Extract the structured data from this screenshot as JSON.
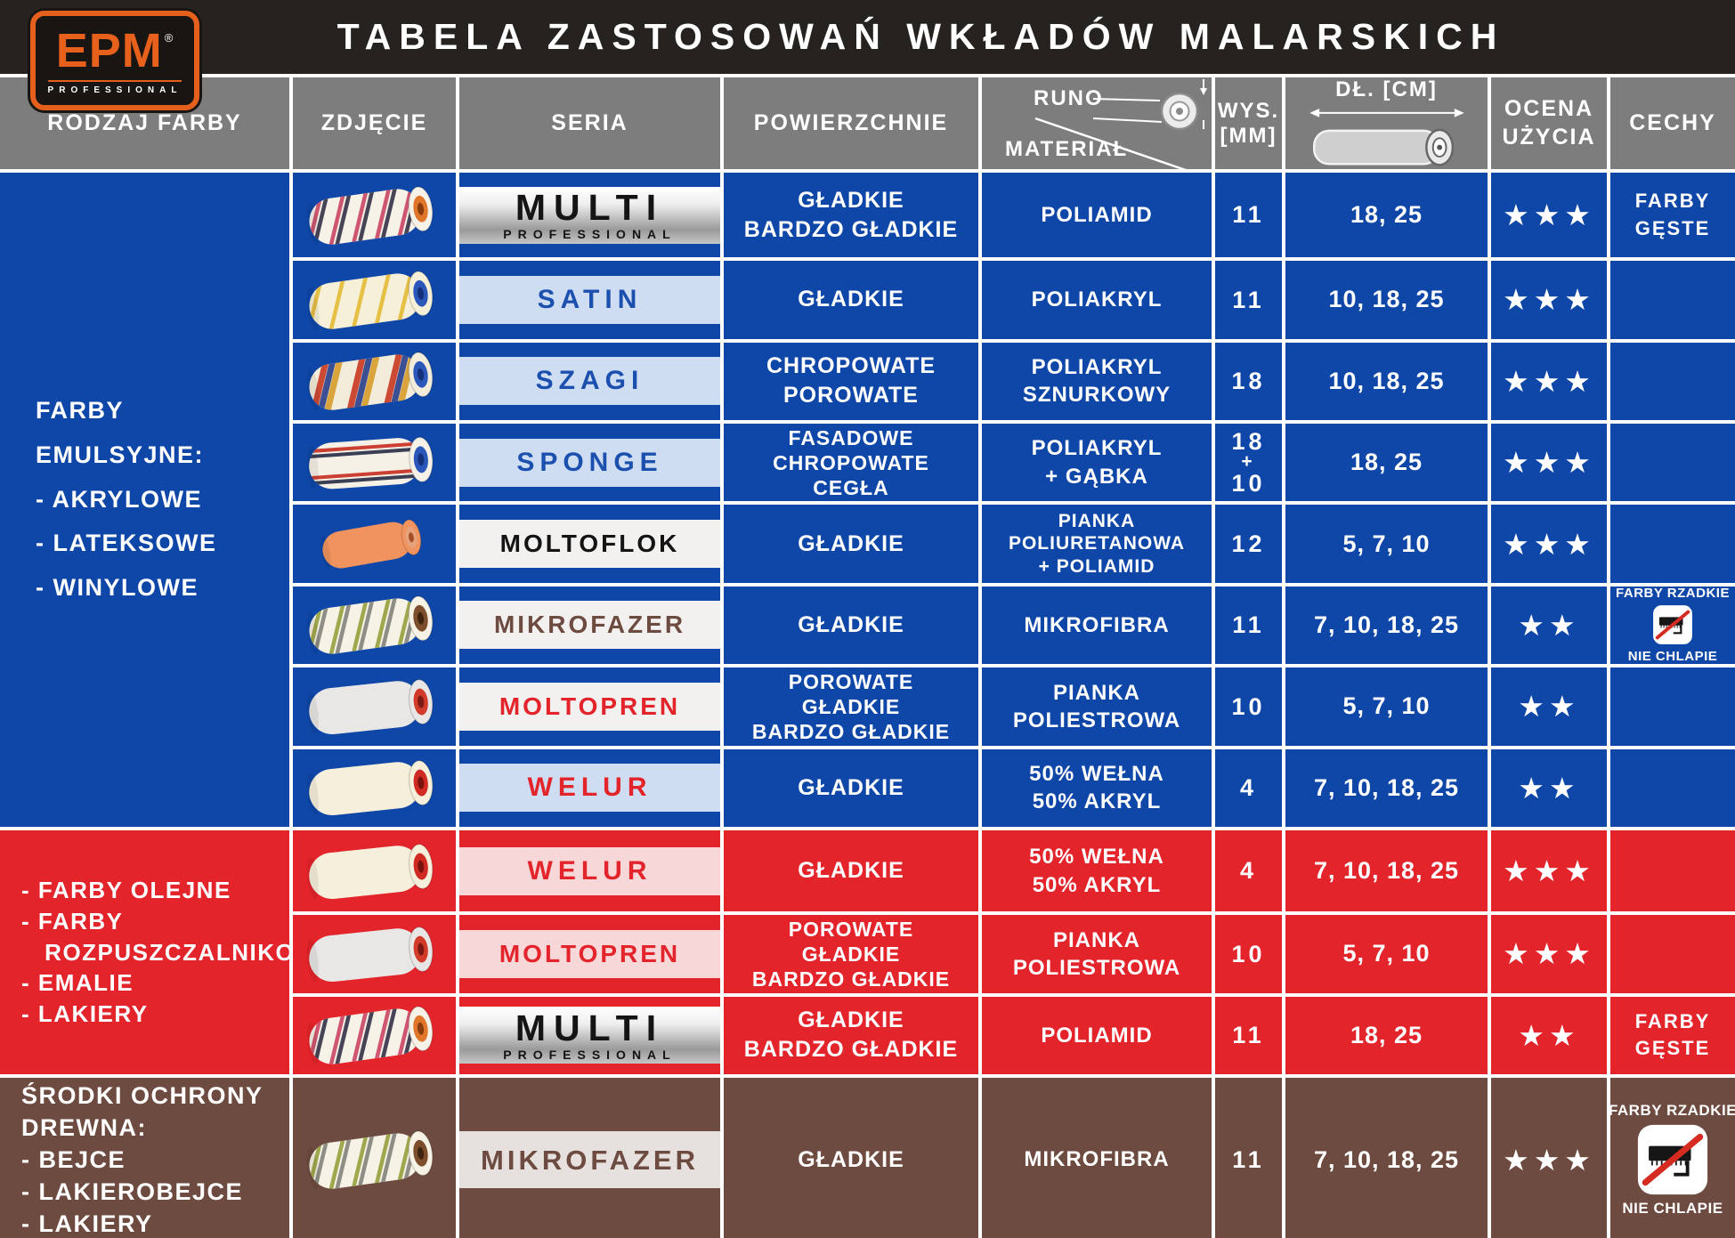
{
  "title": "TABELA ZASTOSOWAŃ WKŁADÓW MALARSKICH",
  "logo": {
    "brand": "EPM",
    "registered": "®",
    "subtitle": "PROFESSIONAL"
  },
  "header": {
    "paint_type": "RODZAJ FARBY",
    "photo": "ZDJĘCIE",
    "series": "SERIA",
    "surfaces": "POWIERZCHNIE",
    "pile": "RUNO",
    "material": "MATERIAŁ",
    "pile_height_l1": "WYS.",
    "pile_height_l2": "[MM]",
    "length": "DŁ. [CM]",
    "rating_l1": "OCENA",
    "rating_l2": "UŻYCIA",
    "features": "CECHY"
  },
  "star_char": "★",
  "colors": {
    "title_bg": "#262220",
    "header_bg": "#7d7d7d",
    "section_blue": "#0f47a8",
    "section_red": "#e3242b",
    "section_brown": "#6e4b40",
    "band_lightblue": "#cfddf2",
    "band_white": "#f3f1f0",
    "band_pink": "#f8d7d9",
    "band_lightgrey": "#e6e1de",
    "silver_top": "#ffffff",
    "silver_bottom": "#9a9a9a",
    "text_blue": "#1b50ae",
    "text_red": "#e3242b",
    "text_black": "#141414",
    "text_brown": "#6e4b40",
    "logo_orange": "#e55f1d",
    "slash_red": "#d52b20"
  },
  "rollers": {
    "multi": {
      "body": "#f7f2e8",
      "stripes": [
        "#cf5670",
        "#474457"
      ],
      "pattern": "diag",
      "core": "#e0762a",
      "hole": "#8a3c10",
      "rot": -8
    },
    "satin": {
      "body": "#f7f0d8",
      "stripes": [
        "#e6bf45"
      ],
      "pattern": "diag",
      "core": "#2b57bb",
      "hole": "#15307a",
      "rot": -8
    },
    "szagi": {
      "body": "#f4ecda",
      "stripes": [
        "#cc4a33",
        "#3c4f92",
        "#d9a43c"
      ],
      "pattern": "diag-thick",
      "core": "#2b57bb",
      "hole": "#15307a",
      "rot": -8
    },
    "sponge": {
      "body": "#f6f1e6",
      "stripes": [
        "#cc3f33",
        "#3a3f55"
      ],
      "pattern": "long",
      "core": "#2b57bb",
      "hole": "#15307a",
      "rot": -4
    },
    "moltoflok": {
      "body": "#f0935f",
      "stripes": [],
      "pattern": "plain",
      "core": "#e8a27b",
      "hole": "#a34e28",
      "rot": -10,
      "small": true
    },
    "mikrofazer": {
      "body": "#f6f2e6",
      "stripes": [
        "#a0a84e",
        "#8f8e86"
      ],
      "pattern": "diag",
      "core": "#7d4e2c",
      "hole": "#3f2410",
      "rot": -8
    },
    "moltopren": {
      "body": "#e8e7e5",
      "stripes": [],
      "pattern": "plain",
      "core": "#d23a2a",
      "hole": "#7a1a12",
      "rot": -6
    },
    "welur": {
      "body": "#f6efdb",
      "stripes": [],
      "pattern": "plain",
      "core": "#d02a22",
      "hole": "#7a130e",
      "rot": -6
    }
  },
  "sections": [
    {
      "name": "farby-emulsyjne",
      "theme": "blue",
      "label_lines": [
        "FARBY",
        "EMULSYJNE:",
        "- AKRYLOWE",
        "- LATEKSOWE",
        "- WINYLOWE"
      ],
      "rows": [
        {
          "seria": "MULTI",
          "seria_sub": "PROFESSIONAL",
          "band": "silver",
          "text": "black",
          "roller": "multi",
          "surfaces": [
            "GŁADKIE",
            "BARDZO GŁADKIE"
          ],
          "material": [
            "POLIAMID"
          ],
          "wys": [
            "11"
          ],
          "dl": "18, 25",
          "stars": 3,
          "cechy": {
            "lines": [
              "FARBY",
              "GĘSTE"
            ]
          }
        },
        {
          "seria": "SATIN",
          "band": "lightblue",
          "text": "blue",
          "roller": "satin",
          "surfaces": [
            "GŁADKIE"
          ],
          "material": [
            "POLIAKRYL"
          ],
          "wys": [
            "11"
          ],
          "dl": "10, 18, 25",
          "stars": 3,
          "cechy": null
        },
        {
          "seria": "SZAGI",
          "band": "lightblue",
          "text": "blue",
          "roller": "szagi",
          "surfaces": [
            "CHROPOWATE",
            "POROWATE"
          ],
          "material": [
            "POLIAKRYL",
            "SZNURKOWY"
          ],
          "wys": [
            "18"
          ],
          "dl": "10, 18, 25",
          "stars": 3,
          "cechy": null
        },
        {
          "seria": "SPONGE",
          "band": "lightblue",
          "text": "blue",
          "roller": "sponge",
          "surfaces": [
            "FASADOWE",
            "CHROPOWATE",
            "CEGŁA"
          ],
          "material": [
            "POLIAKRYL",
            "+ GĄBKA"
          ],
          "wys": [
            "18",
            "+",
            "10"
          ],
          "dl": "18, 25",
          "stars": 3,
          "cechy": null
        },
        {
          "seria": "MOLTOFLOK",
          "band": "white",
          "text": "black",
          "roller": "moltoflok",
          "surfaces": [
            "GŁADKIE"
          ],
          "material": [
            "PIANKA",
            "POLIURETANOWA",
            "+ POLIAMID"
          ],
          "wys": [
            "12"
          ],
          "dl": "5, 7, 10",
          "stars": 3,
          "cechy": null
        },
        {
          "seria": "MIKROFAZER",
          "band": "white",
          "text": "brown",
          "roller": "mikrofazer",
          "surfaces": [
            "GŁADKIE"
          ],
          "material": [
            "MIKROFIBRA"
          ],
          "wys": [
            "11"
          ],
          "dl": "7, 10, 18, 25",
          "stars": 2,
          "cechy": {
            "top": "FARBY RZADKIE",
            "bottom": "NIE CHLAPIE",
            "icon": "no-splash"
          }
        },
        {
          "seria": "MOLTOPREN",
          "band": "white",
          "text": "red",
          "roller": "moltopren",
          "surfaces": [
            "POROWATE",
            "GŁADKIE",
            "BARDZO GŁADKIE"
          ],
          "material": [
            "PIANKA",
            "POLIESTROWA"
          ],
          "wys": [
            "10"
          ],
          "dl": "5, 7, 10",
          "stars": 2,
          "cechy": null
        },
        {
          "seria": "WELUR",
          "band": "lightblue",
          "text": "red",
          "roller": "welur",
          "surfaces": [
            "GŁADKIE"
          ],
          "material": [
            "50% WEŁNA",
            "50% AKRYL"
          ],
          "wys": [
            "4"
          ],
          "dl": "7, 10, 18, 25",
          "stars": 2,
          "cechy": null
        }
      ]
    },
    {
      "name": "farby-olejne",
      "theme": "red",
      "label_lines": [
        "- FARBY OLEJNE",
        "- FARBY",
        "   ROZPUSZCZALNIKOWE",
        "- EMALIE",
        "- LAKIERY"
      ],
      "rows": [
        {
          "seria": "WELUR",
          "band": "pink",
          "text": "red",
          "roller": "welur",
          "surfaces": [
            "GŁADKIE"
          ],
          "material": [
            "50% WEŁNA",
            "50% AKRYL"
          ],
          "wys": [
            "4"
          ],
          "dl": "7, 10, 18, 25",
          "stars": 3,
          "cechy": null
        },
        {
          "seria": "MOLTOPREN",
          "band": "pink",
          "text": "red",
          "roller": "moltopren",
          "surfaces": [
            "POROWATE",
            "GŁADKIE",
            "BARDZO GŁADKIE"
          ],
          "material": [
            "PIANKA",
            "POLIESTROWA"
          ],
          "wys": [
            "10"
          ],
          "dl": "5, 7, 10",
          "stars": 3,
          "cechy": null
        },
        {
          "seria": "MULTI",
          "seria_sub": "PROFESSIONAL",
          "band": "silver",
          "text": "black",
          "roller": "multi",
          "surfaces": [
            "GŁADKIE",
            "BARDZO GŁADKIE"
          ],
          "material": [
            "POLIAMID"
          ],
          "wys": [
            "11"
          ],
          "dl": "18, 25",
          "stars": 2,
          "cechy": {
            "lines": [
              "FARBY",
              "GĘSTE"
            ]
          }
        }
      ]
    },
    {
      "name": "srodki-ochrony-drewna",
      "theme": "brown",
      "label_lines": [
        "ŚRODKI OCHRONY",
        "DREWNA:",
        "- BEJCE",
        "- LAKIEROBEJCE",
        "- LAKIERY"
      ],
      "rows": [
        {
          "seria": "MIKROFAZER",
          "band": "lightgrey",
          "text": "brown",
          "roller": "mikrofazer",
          "surfaces": [
            "GŁADKIE"
          ],
          "material": [
            "MIKROFIBRA"
          ],
          "wys": [
            "11"
          ],
          "dl": "7, 10, 18, 25",
          "stars": 3,
          "cechy": {
            "top": "FARBY RZADKIE",
            "bottom": "NIE CHLAPIE",
            "icon": "no-splash"
          }
        }
      ]
    }
  ]
}
